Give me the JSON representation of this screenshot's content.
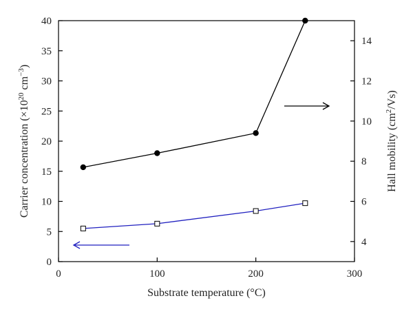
{
  "chart_data": {
    "type": "line",
    "x": [
      25,
      100,
      200,
      250
    ],
    "xlabel": "Substrate temperature (°C)",
    "ylabel_left": {
      "prefix": "Carrier concentration (×10",
      "exp1": "20",
      "mid": " cm",
      "exp2": "−3",
      "suffix": ")"
    },
    "ylabel_right": {
      "prefix": "Hall mobility (cm",
      "exp": "2",
      "suffix": "/Vs)"
    },
    "xlim": [
      0,
      300
    ],
    "ylim_left": [
      0,
      40
    ],
    "ylim_right": [
      3,
      15
    ],
    "xticks": [
      0,
      100,
      200,
      300
    ],
    "yticks_left": [
      0,
      5,
      10,
      15,
      20,
      25,
      30,
      35,
      40
    ],
    "yticks_right": [
      4,
      6,
      8,
      10,
      12,
      14
    ],
    "series": [
      {
        "axis": "left",
        "marker": "open-square",
        "color": "#1f1fbf",
        "values": [
          5.5,
          6.3,
          8.4,
          9.7
        ]
      },
      {
        "axis": "right",
        "marker": "filled-circle",
        "color": "#000000",
        "values": [
          7.7,
          8.4,
          9.4,
          15.0
        ]
      }
    ],
    "arrows": [
      {
        "direction": "left",
        "series_axis": "left",
        "color": "#1f1fbf"
      },
      {
        "direction": "right",
        "series_axis": "right",
        "color": "#000000"
      }
    ],
    "grid": false
  }
}
